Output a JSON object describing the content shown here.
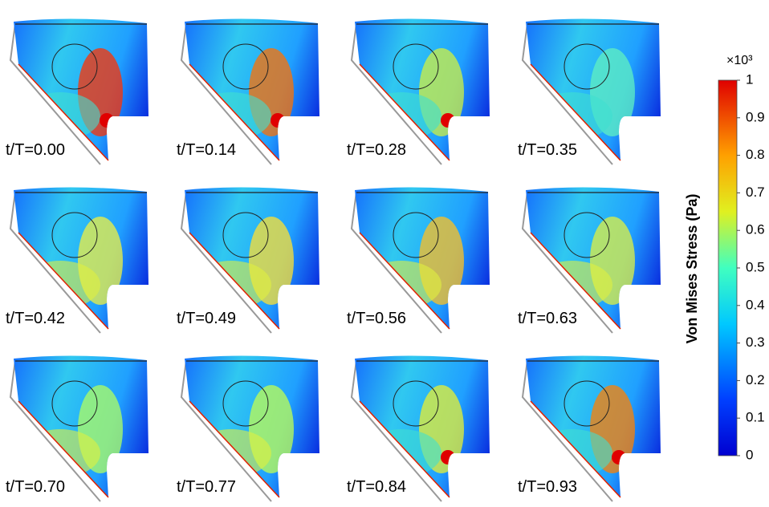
{
  "panels": [
    {
      "label": "t/T=0.00"
    },
    {
      "label": "t/T=0.14"
    },
    {
      "label": "t/T=0.28"
    },
    {
      "label": "t/T=0.35"
    },
    {
      "label": "t/T=0.42"
    },
    {
      "label": "t/T=0.49"
    },
    {
      "label": "t/T=0.56"
    },
    {
      "label": "t/T=0.63"
    },
    {
      "label": "t/T=0.70"
    },
    {
      "label": "t/T=0.77"
    },
    {
      "label": "t/T=0.84"
    },
    {
      "label": "t/T=0.93"
    }
  ],
  "colorbar": {
    "title": "Von Mises Stress (Pa)",
    "multiplier": "×10³",
    "lim": [
      0,
      1
    ],
    "ticks": [
      0,
      0.1,
      0.2,
      0.3,
      0.4,
      0.5,
      0.6,
      0.7,
      0.8,
      0.9,
      1
    ]
  }
}
